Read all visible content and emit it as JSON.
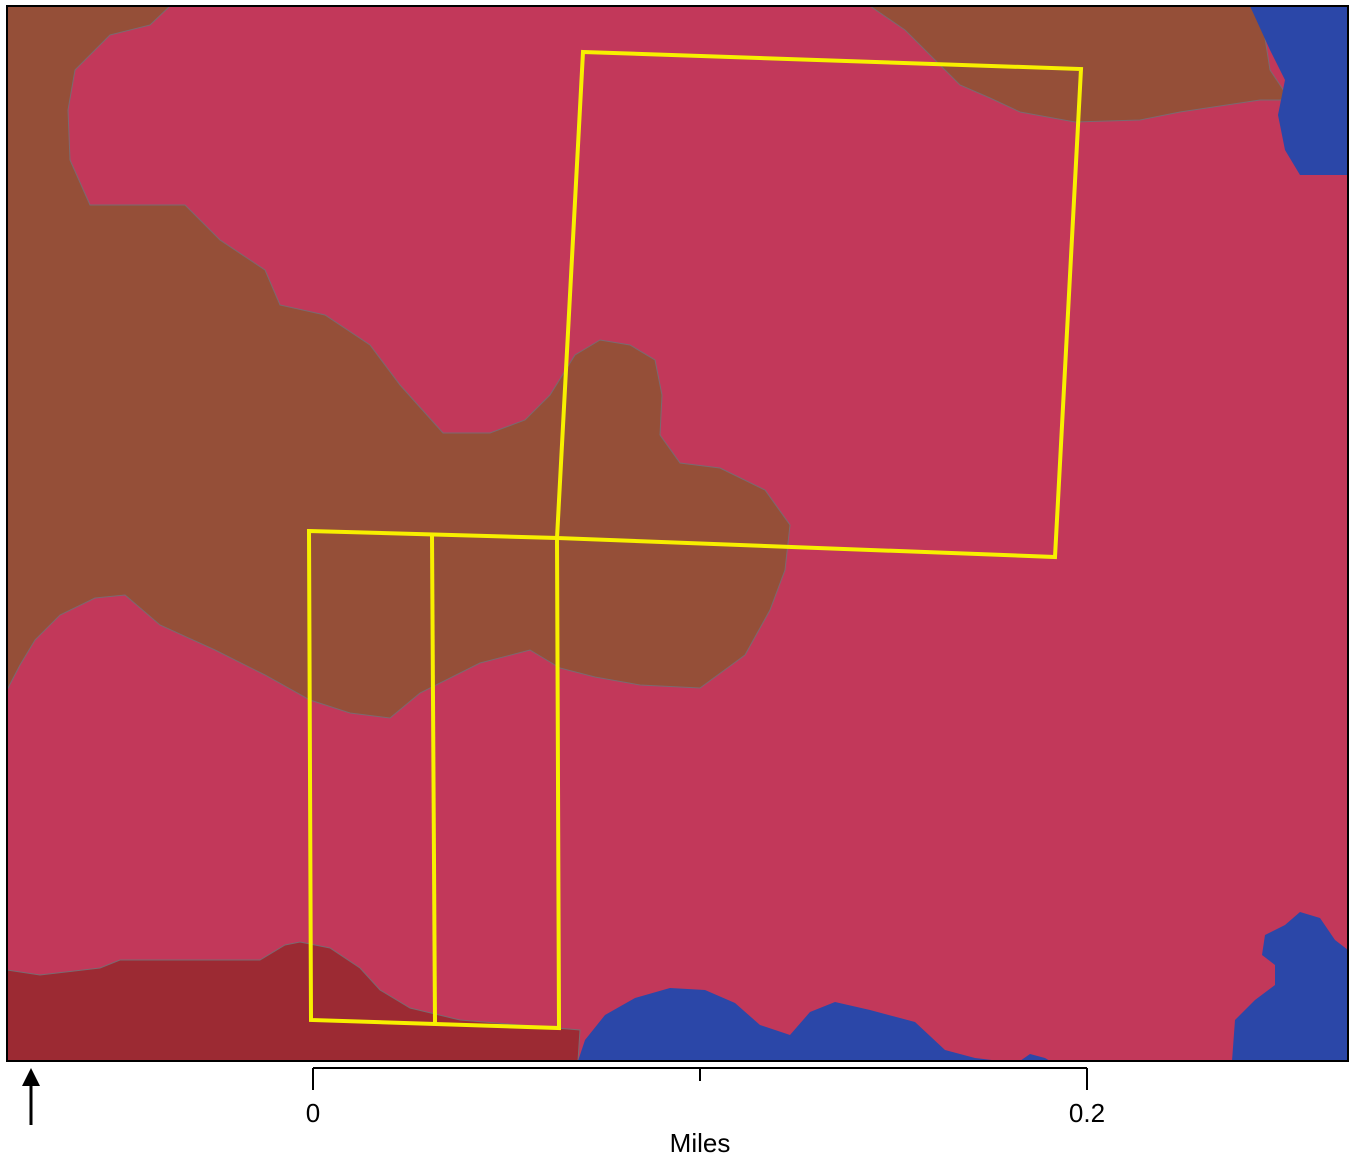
{
  "map": {
    "colors": {
      "pink_unit": "#C2385A",
      "brown_unit": "#954F38",
      "dark_red_unit": "#9C2A33",
      "water": "#2B47A8",
      "parcel_outline": "#F7F000",
      "frame": "#000000"
    }
  },
  "north_arrow": {
    "icon": "north-arrow-icon"
  },
  "scale_bar": {
    "unit_label": "Miles",
    "tick_labels": [
      "0",
      "0.2"
    ]
  }
}
